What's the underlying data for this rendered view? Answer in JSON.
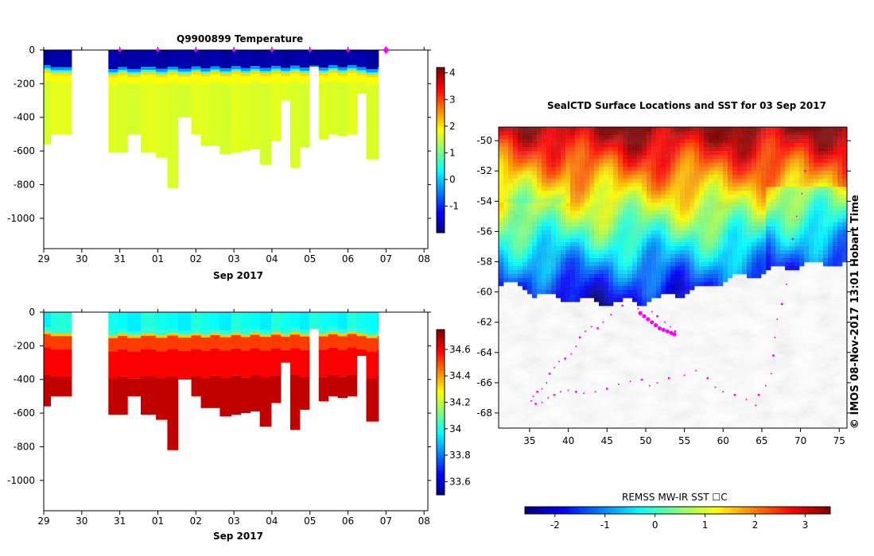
{
  "chart_data": [
    {
      "type": "heatmap",
      "title": "Q9900899  Temperature",
      "xlabel": "Sep 2017",
      "x_ticks": [
        "29",
        "30",
        "31",
        "01",
        "02",
        "03",
        "04",
        "05",
        "06",
        "07",
        "08"
      ],
      "y_ticks": [
        0,
        -200,
        -400,
        -600,
        -800,
        -1000
      ],
      "ylim": [
        -1180,
        0
      ],
      "colorbar_ticks": [
        -1,
        0,
        1,
        2,
        3,
        4
      ],
      "colorbar_range": [
        -2,
        4.2
      ],
      "surface_value": -1.8,
      "mixed_layer_depth": 120,
      "deep_value": 1.6,
      "profile_markers": [
        "31",
        "01",
        "02",
        "03",
        "04",
        "05",
        "06",
        "07"
      ]
    },
    {
      "type": "heatmap",
      "title": "",
      "xlabel": "Sep 2017",
      "x_ticks": [
        "29",
        "30",
        "31",
        "01",
        "02",
        "03",
        "04",
        "05",
        "06",
        "07",
        "08"
      ],
      "y_ticks": [
        0,
        -200,
        -400,
        -600,
        -800,
        -1000
      ],
      "ylim": [
        -1180,
        0
      ],
      "colorbar_ticks": [
        33.6,
        33.8,
        34,
        34.2,
        34.4,
        34.6
      ],
      "colorbar_range": [
        33.5,
        34.75
      ],
      "surface_value": 34.0,
      "mixed_layer_depth": 120,
      "deep_value": 34.65
    },
    {
      "type": "heatmap",
      "title": "SealCTD Surface Locations and SST for 03 Sep 2017",
      "xlabel": "",
      "x_ticks": [
        35,
        40,
        45,
        50,
        55,
        60,
        65,
        70,
        75
      ],
      "y_ticks": [
        -50,
        -52,
        -54,
        -56,
        -58,
        -60,
        -62,
        -64,
        -66,
        -68
      ],
      "xlim": [
        31,
        76
      ],
      "ylim": [
        -69,
        -49.1
      ],
      "colorbar_label": "REMSS MW-IR SST ☐C",
      "colorbar_ticks": [
        -2,
        -1,
        0,
        1,
        2,
        3
      ],
      "colorbar_range": [
        -2.6,
        3.5
      ]
    }
  ],
  "profiles": [
    {
      "x": 29.0,
      "w": 0.18,
      "d": 560
    },
    {
      "x": 29.18,
      "w": 0.55,
      "d": 500
    },
    {
      "x": 30.7,
      "w": 0.25,
      "d": 610
    },
    {
      "x": 30.95,
      "w": 0.25,
      "d": 610
    },
    {
      "x": 31.2,
      "w": 0.35,
      "d": 500
    },
    {
      "x": 31.55,
      "w": 0.4,
      "d": 610
    },
    {
      "x": 31.95,
      "w": 0.3,
      "d": 640
    },
    {
      "x": 32.25,
      "w": 0.28,
      "d": 820
    },
    {
      "x": 32.53,
      "w": 0.35,
      "d": 400
    },
    {
      "x": 32.88,
      "w": 0.25,
      "d": 500
    },
    {
      "x": 33.13,
      "w": 0.25,
      "d": 570
    },
    {
      "x": 33.38,
      "w": 0.25,
      "d": 570
    },
    {
      "x": 33.63,
      "w": 0.3,
      "d": 620
    },
    {
      "x": 33.93,
      "w": 0.25,
      "d": 610
    },
    {
      "x": 34.18,
      "w": 0.25,
      "d": 600
    },
    {
      "x": 34.43,
      "w": 0.25,
      "d": 590
    },
    {
      "x": 34.68,
      "w": 0.3,
      "d": 680
    },
    {
      "x": 34.98,
      "w": 0.25,
      "d": 540
    },
    {
      "x": 35.23,
      "w": 0.25,
      "d": 300
    },
    {
      "x": 35.48,
      "w": 0.25,
      "d": 700
    },
    {
      "x": 35.73,
      "w": 0.25,
      "d": 580
    },
    {
      "x": 35.98,
      "w": 0.25,
      "d": 100
    },
    {
      "x": 36.23,
      "w": 0.25,
      "d": 530
    },
    {
      "x": 36.48,
      "w": 0.25,
      "d": 500
    },
    {
      "x": 36.73,
      "w": 0.25,
      "d": 510
    },
    {
      "x": 36.98,
      "w": 0.25,
      "d": 500
    },
    {
      "x": 37.23,
      "w": 0.25,
      "d": 260
    },
    {
      "x": 37.48,
      "w": 0.3,
      "d": 650
    },
    {
      "x": 37.78,
      "w": 0.01,
      "d": 650
    }
  ],
  "track_points": [
    [
      53.8,
      -62.6
    ],
    [
      53.2,
      -62.3
    ],
    [
      52.5,
      -62.0
    ],
    [
      51.5,
      -61.6
    ],
    [
      50.8,
      -61.3
    ],
    [
      49,
      -61.1
    ],
    [
      47,
      -60.9
    ],
    [
      45.5,
      -61.5
    ],
    [
      44.5,
      -62.0
    ],
    [
      43.8,
      -62.4
    ],
    [
      43.0,
      -62.3
    ],
    [
      42.2,
      -62.6
    ],
    [
      41.5,
      -63.0
    ],
    [
      41.0,
      -63.6
    ],
    [
      40.4,
      -64.1
    ],
    [
      39.6,
      -64.4
    ],
    [
      38.8,
      -64.6
    ],
    [
      38.2,
      -65.0
    ],
    [
      37.6,
      -65.4
    ],
    [
      37.2,
      -66.0
    ],
    [
      36.6,
      -66.4
    ],
    [
      36.0,
      -66.6
    ],
    [
      35.5,
      -66.9
    ],
    [
      35.2,
      -67.2
    ],
    [
      35.8,
      -67.4
    ],
    [
      36.6,
      -67.3
    ],
    [
      37.4,
      -67.0
    ],
    [
      38.2,
      -66.8
    ],
    [
      39.0,
      -66.6
    ],
    [
      40.0,
      -66.5
    ],
    [
      41.0,
      -66.6
    ],
    [
      42.0,
      -66.7
    ],
    [
      43.5,
      -66.6
    ],
    [
      45.0,
      -66.4
    ],
    [
      46.5,
      -66.1
    ],
    [
      48.0,
      -65.9
    ],
    [
      49.5,
      -65.8
    ],
    [
      50.5,
      -66.2
    ],
    [
      51.5,
      -66.0
    ],
    [
      53,
      -65.7
    ],
    [
      55,
      -65.5
    ],
    [
      56.5,
      -65.2
    ],
    [
      58.0,
      -65.7
    ],
    [
      59.0,
      -66.3
    ],
    [
      60.0,
      -66.6
    ],
    [
      61.5,
      -66.8
    ],
    [
      63.0,
      -67.1
    ],
    [
      64.2,
      -67.5
    ],
    [
      64.6,
      -66.8
    ],
    [
      65.5,
      -66.2
    ],
    [
      66.2,
      -65.4
    ],
    [
      66.5,
      -64.2
    ],
    [
      66.7,
      -63.0
    ],
    [
      67.0,
      -61.8
    ],
    [
      67.6,
      -60.8
    ],
    [
      68.2,
      -59.5
    ],
    [
      68.6,
      -58.0
    ],
    [
      69.0,
      -56.5
    ],
    [
      69.5,
      -55.0
    ],
    [
      70.2,
      -53.5
    ],
    [
      70.6,
      -52.0
    ],
    [
      71.0,
      -50.5
    ]
  ],
  "highlight_points": [
    [
      49.3,
      -61.4
    ],
    [
      49.8,
      -61.6
    ],
    [
      50.3,
      -61.8
    ],
    [
      50.8,
      -62.0
    ],
    [
      51.3,
      -62.2
    ],
    [
      51.8,
      -62.4
    ],
    [
      52.3,
      -62.5
    ],
    [
      52.8,
      -62.6
    ],
    [
      53.3,
      -62.7
    ],
    [
      53.7,
      -62.8
    ]
  ],
  "colors": {
    "marker": "#ff00ff",
    "track": "#ff00ff"
  }
}
